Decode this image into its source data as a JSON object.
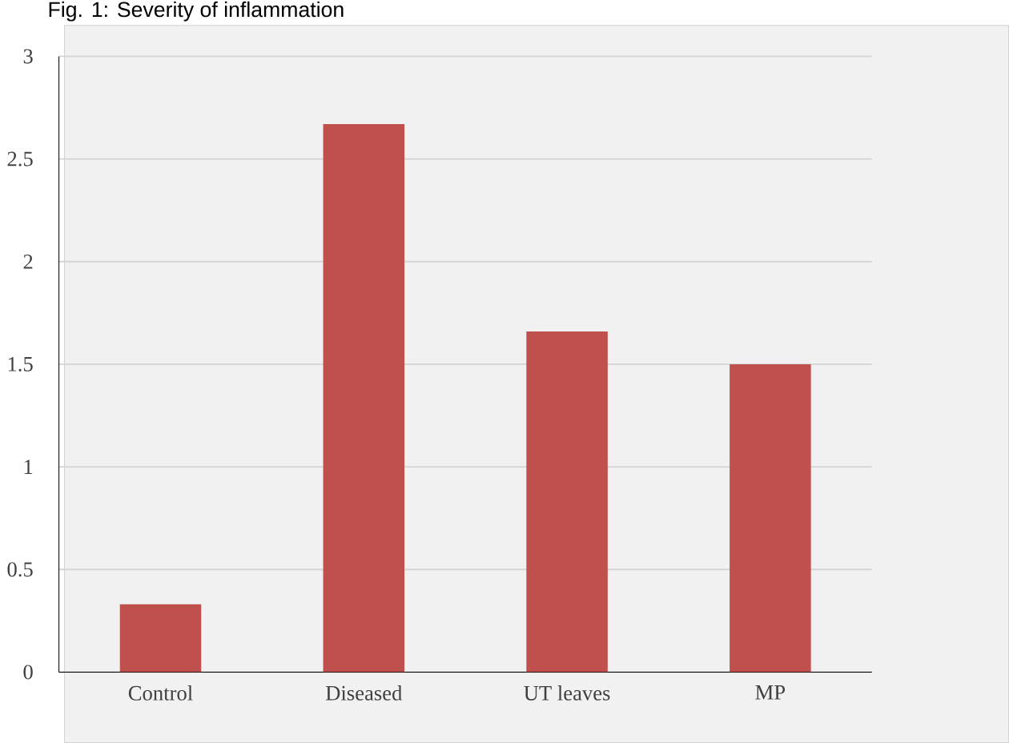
{
  "chart_data": {
    "type": "bar",
    "title": "Fig. 1: Severity of inflammation",
    "categories": [
      "Control",
      "Diseased",
      "UT leaves",
      "MP"
    ],
    "values": [
      0.33,
      2.67,
      1.66,
      1.5
    ],
    "color": "#c0504d",
    "ylim": [
      0,
      3
    ],
    "yticks": [
      0,
      0.5,
      1,
      1.5,
      2,
      2.5,
      3
    ],
    "grid": "y"
  }
}
